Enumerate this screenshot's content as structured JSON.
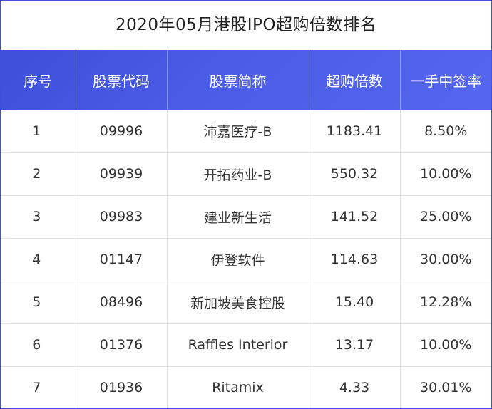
{
  "title": "2020年05月港股IPO超购倍数排名",
  "headers": [
    "序号",
    "股票代码",
    "股票简称",
    "超购倍数",
    "一手中签率"
  ],
  "rows": [
    {
      "rank": "1",
      "code": "09996",
      "name": "沛嘉医疗-B",
      "oversub": "1183.41",
      "rate": "8.50%"
    },
    {
      "rank": "2",
      "code": "09939",
      "name": "开拓药业-B",
      "oversub": "550.32",
      "rate": "10.00%"
    },
    {
      "rank": "3",
      "code": "09983",
      "name": "建业新生活",
      "oversub": "141.52",
      "rate": "25.00%"
    },
    {
      "rank": "4",
      "code": "01147",
      "name": "伊登软件",
      "oversub": "114.63",
      "rate": "30.00%"
    },
    {
      "rank": "5",
      "code": "08496",
      "name": "新加坡美食控股",
      "oversub": "15.40",
      "rate": "12.28%"
    },
    {
      "rank": "6",
      "code": "01376",
      "name": "Raffles Interior",
      "oversub": "13.17",
      "rate": "10.00%"
    },
    {
      "rank": "7",
      "code": "01936",
      "name": "Ritamix",
      "oversub": "4.33",
      "rate": "30.01%"
    }
  ],
  "colors": {
    "header_bg": "#4556e0",
    "border": "#3f4fd6",
    "grid": "#e2e2e2"
  }
}
